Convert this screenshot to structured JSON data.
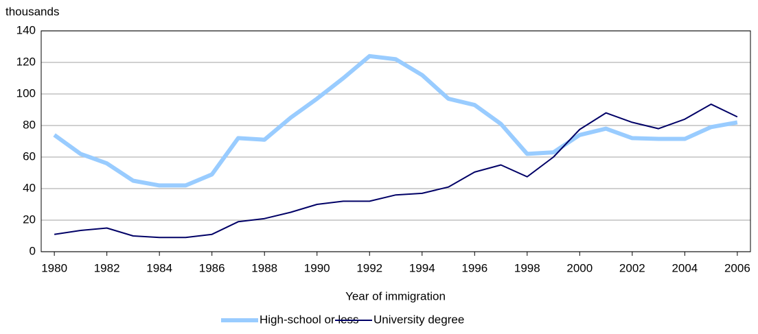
{
  "chart_data": {
    "type": "line",
    "y_unit_label": "thousands",
    "x_label": "Year of immigration",
    "x": [
      1980,
      1981,
      1982,
      1983,
      1984,
      1985,
      1986,
      1987,
      1988,
      1989,
      1990,
      1991,
      1992,
      1993,
      1994,
      1995,
      1996,
      1997,
      1998,
      1999,
      2000,
      2001,
      2002,
      2003,
      2004,
      2005,
      2006
    ],
    "series": [
      {
        "name": "High-school or less",
        "color": "#99ccff",
        "values": [
          74,
          62,
          56,
          45,
          42,
          42,
          49,
          72,
          71,
          85,
          97,
          110,
          124,
          122,
          112,
          97,
          93,
          81,
          62,
          63,
          74,
          78,
          72,
          71.5,
          71.5,
          79,
          82
        ]
      },
      {
        "name": "University degree",
        "color": "#000066",
        "values": [
          11,
          13.5,
          15,
          10,
          9,
          9,
          11,
          19,
          21,
          25,
          30,
          32,
          32,
          36,
          37,
          41,
          50.5,
          55,
          47.5,
          60,
          77.5,
          88,
          82,
          78,
          84,
          93.5,
          85.5
        ]
      }
    ],
    "xlim": [
      1979.5,
      2006.5
    ],
    "xticks": [
      1980,
      1982,
      1984,
      1986,
      1988,
      1990,
      1992,
      1994,
      1996,
      1998,
      2000,
      2002,
      2004,
      2006
    ],
    "ylim": [
      0,
      140
    ],
    "yticks": [
      0,
      20,
      40,
      60,
      80,
      100,
      120,
      140
    ],
    "grid": true,
    "legend": "bottom"
  }
}
